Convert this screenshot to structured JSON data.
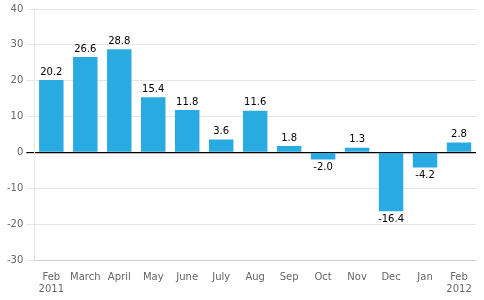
{
  "chart_data": {
    "type": "bar",
    "categories": [
      "Feb",
      "March",
      "April",
      "May",
      "June",
      "July",
      "Aug",
      "Sep",
      "Oct",
      "Nov",
      "Dec",
      "Jan",
      "Feb"
    ],
    "year_labels": [
      "2011",
      null,
      null,
      null,
      null,
      null,
      null,
      null,
      null,
      null,
      null,
      null,
      "2012"
    ],
    "values": [
      20.2,
      26.6,
      28.8,
      15.4,
      11.8,
      3.6,
      11.6,
      1.8,
      -2.0,
      1.3,
      -16.4,
      -4.2,
      2.8
    ],
    "value_labels": [
      "20.2",
      "26.6",
      "28.8",
      "15.4",
      "11.8",
      "3.6",
      "11.6",
      "1.8",
      "-2.0",
      "1.3",
      "-16.4",
      "-4.2",
      "2.8"
    ],
    "color": "#29abe2",
    "ylim": [
      -30,
      40
    ],
    "yticks": [
      -30,
      -20,
      -10,
      0,
      10,
      20,
      30,
      40
    ],
    "grid": true,
    "data_labels": true
  }
}
